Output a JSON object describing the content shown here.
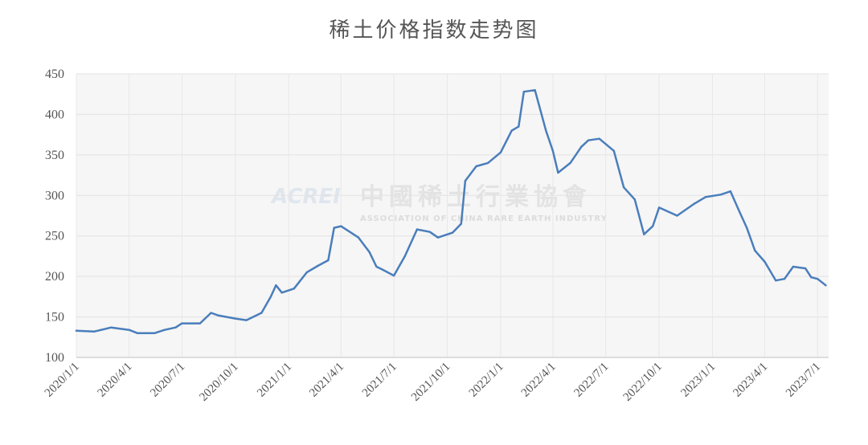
{
  "chart_data": {
    "type": "line",
    "title": "稀土价格指数走势图",
    "xlabel": "",
    "ylabel": "",
    "ylim": [
      100,
      450
    ],
    "yticks": [
      100,
      150,
      200,
      250,
      300,
      350,
      400,
      450
    ],
    "xticks": [
      "2020/1/1",
      "2020/4/1",
      "2020/7/1",
      "2020/10/1",
      "2021/1/1",
      "2021/4/1",
      "2021/7/1",
      "2021/10/1",
      "2022/1/1",
      "2022/4/1",
      "2022/7/1",
      "2022/10/1",
      "2023/1/1",
      "2023/4/1",
      "2023/7/1"
    ],
    "grid": true,
    "legend": "none",
    "line_color": "#4a7ebb",
    "series": [
      {
        "points": [
          [
            "2020/1/1",
            133
          ],
          [
            "2020/2/1",
            132
          ],
          [
            "2020/3/1",
            137
          ],
          [
            "2020/4/1",
            134
          ],
          [
            "2020/4/15",
            130
          ],
          [
            "2020/5/15",
            130
          ],
          [
            "2020/6/1",
            134
          ],
          [
            "2020/6/20",
            137
          ],
          [
            "2020/7/1",
            142
          ],
          [
            "2020/8/1",
            142
          ],
          [
            "2020/8/20",
            155
          ],
          [
            "2020/9/1",
            152
          ],
          [
            "2020/10/1",
            148
          ],
          [
            "2020/10/20",
            146
          ],
          [
            "2020/11/15",
            155
          ],
          [
            "2020/12/1",
            175
          ],
          [
            "2020/12/10",
            189
          ],
          [
            "2020/12/20",
            180
          ],
          [
            "2021/1/10",
            185
          ],
          [
            "2021/2/1",
            205
          ],
          [
            "2021/2/20",
            213
          ],
          [
            "2021/3/10",
            220
          ],
          [
            "2021/3/20",
            260
          ],
          [
            "2021/4/1",
            262
          ],
          [
            "2021/5/1",
            248
          ],
          [
            "2021/5/20",
            230
          ],
          [
            "2021/6/1",
            212
          ],
          [
            "2021/6/10",
            209
          ],
          [
            "2021/7/1",
            201
          ],
          [
            "2021/7/20",
            225
          ],
          [
            "2021/8/10",
            258
          ],
          [
            "2021/9/1",
            255
          ],
          [
            "2021/9/15",
            248
          ],
          [
            "2021/10/10",
            254
          ],
          [
            "2021/10/25",
            265
          ],
          [
            "2021/11/1",
            318
          ],
          [
            "2021/11/20",
            336
          ],
          [
            "2021/12/10",
            340
          ],
          [
            "2022/1/1",
            353
          ],
          [
            "2022/1/20",
            380
          ],
          [
            "2022/2/1",
            385
          ],
          [
            "2022/2/10",
            428
          ],
          [
            "2022/3/1",
            430
          ],
          [
            "2022/3/20",
            380
          ],
          [
            "2022/4/1",
            355
          ],
          [
            "2022/4/10",
            328
          ],
          [
            "2022/5/1",
            340
          ],
          [
            "2022/5/20",
            360
          ],
          [
            "2022/6/1",
            368
          ],
          [
            "2022/6/20",
            370
          ],
          [
            "2022/7/15",
            355
          ],
          [
            "2022/8/1",
            310
          ],
          [
            "2022/8/20",
            295
          ],
          [
            "2022/9/5",
            252
          ],
          [
            "2022/9/20",
            262
          ],
          [
            "2022/10/1",
            285
          ],
          [
            "2022/11/1",
            275
          ],
          [
            "2022/12/1",
            290
          ],
          [
            "2022/12/20",
            298
          ],
          [
            "2023/1/15",
            301
          ],
          [
            "2023/2/1",
            305
          ],
          [
            "2023/2/15",
            282
          ],
          [
            "2023/3/1",
            260
          ],
          [
            "2023/3/15",
            232
          ],
          [
            "2023/4/1",
            218
          ],
          [
            "2023/4/20",
            195
          ],
          [
            "2023/5/5",
            197
          ],
          [
            "2023/5/20",
            212
          ],
          [
            "2023/6/10",
            210
          ],
          [
            "2023/6/20",
            199
          ],
          [
            "2023/7/1",
            197
          ],
          [
            "2023/7/15",
            189
          ]
        ]
      }
    ]
  },
  "watermark": {
    "logo": "ACREI",
    "name_cn": "中國稀土行業協會",
    "name_en": "ASSOCIATION OF CHINA RARE EARTH INDUSTRY"
  }
}
